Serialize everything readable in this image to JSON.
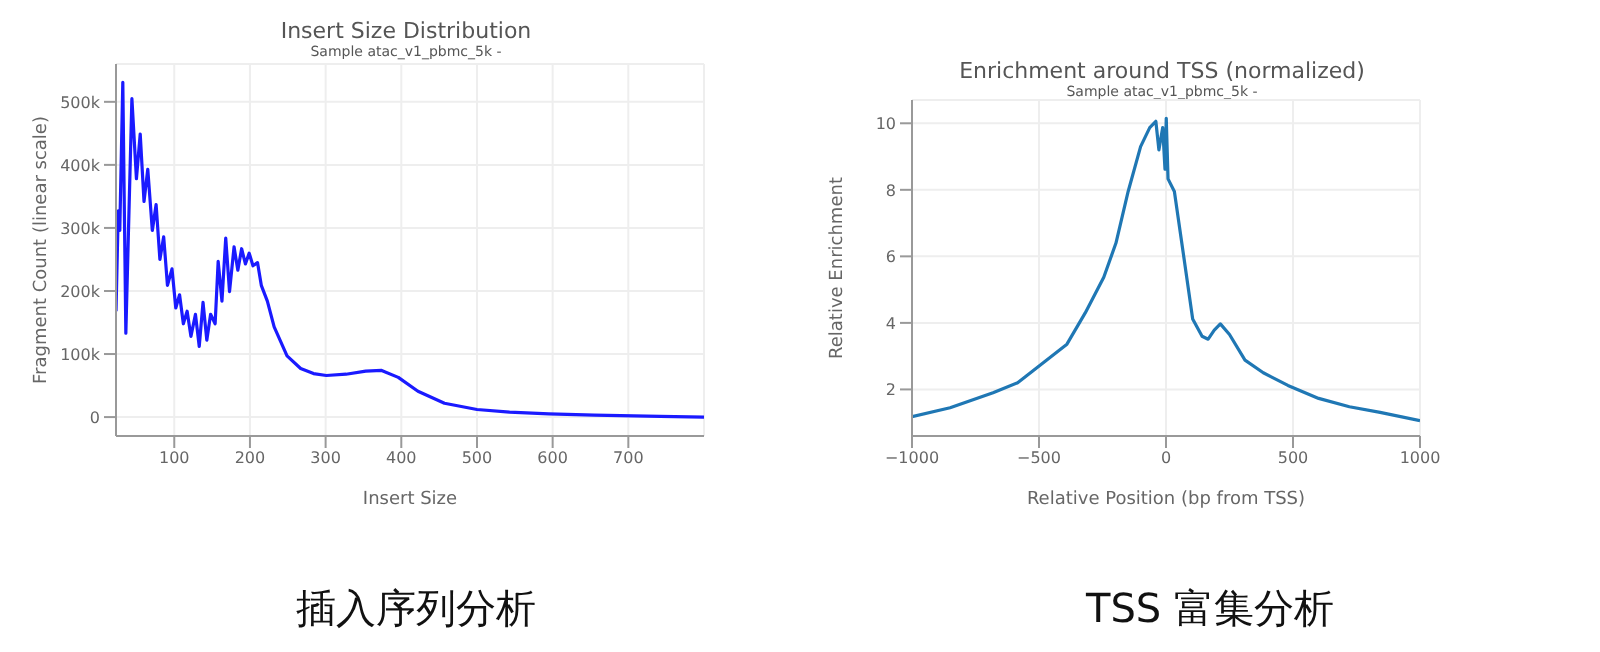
{
  "chart_data": [
    {
      "type": "line",
      "title": "Insert Size Distribution",
      "subtitle": "Sample atac_v1_pbmc_5k -",
      "xlabel": "Insert Size",
      "ylabel": "Fragment Count (linear scale)",
      "annotations": [
        "插入序列分析"
      ],
      "x": [
        23,
        26,
        28,
        32,
        36,
        44,
        50,
        55,
        60,
        65,
        71,
        76,
        81,
        86,
        91,
        97,
        102,
        107,
        112,
        117,
        122,
        128,
        133,
        138,
        143,
        148,
        154,
        158,
        163,
        168,
        173,
        179,
        184,
        189,
        194,
        199,
        204,
        210,
        215,
        223,
        232,
        249,
        267,
        284,
        301,
        327,
        353,
        374,
        396,
        422,
        457,
        500,
        543,
        595,
        655,
        742,
        800
      ],
      "series": [
        {
          "color": "#1a1aff",
          "values": [
            168000,
            327000,
            296000,
            531000,
            133000,
            505000,
            378000,
            449000,
            342000,
            393000,
            296000,
            337000,
            250000,
            286000,
            209000,
            235000,
            173000,
            194000,
            148000,
            168000,
            128000,
            163000,
            112000,
            182000,
            122000,
            163000,
            148000,
            247000,
            184000,
            284000,
            199000,
            270000,
            233000,
            267000,
            243000,
            260000,
            240000,
            245000,
            209000,
            184000,
            143000,
            97000,
            77000,
            69000,
            66000,
            68000,
            73000,
            74000,
            63000,
            41000,
            22000,
            12000,
            8000,
            5000,
            3000,
            1000,
            0
          ]
        }
      ],
      "xlim": [
        23,
        800
      ],
      "xticks": [
        100,
        200,
        300,
        400,
        500,
        600,
        700
      ],
      "ylim": [
        -30000,
        560000
      ],
      "yticks": [
        0,
        {
          "value": 100000,
          "label": "100k"
        },
        {
          "value": 200000,
          "label": "200k"
        },
        {
          "value": 300000,
          "label": "300k"
        },
        {
          "value": 400000,
          "label": "400k"
        },
        {
          "value": 500000,
          "label": "500k"
        }
      ],
      "grid": true,
      "legend": false,
      "marker": "none",
      "line_style": "solid"
    },
    {
      "type": "line",
      "title": "Enrichment around TSS (normalized)",
      "subtitle": "Sample atac_v1_pbmc_5k -",
      "xlabel": "Relative Position (bp from TSS)",
      "ylabel": "Relative Enrichment",
      "annotations": [
        "TSS 富集分析"
      ],
      "x": [
        -1000,
        -850,
        -681,
        -584,
        -487,
        -390,
        -318,
        -245,
        -197,
        -149,
        -100,
        -64,
        -40,
        -28,
        -13,
        -4,
        1,
        8,
        33,
        69,
        105,
        142,
        166,
        190,
        214,
        250,
        311,
        383,
        480,
        601,
        722,
        843,
        1000
      ],
      "series": [
        {
          "color": "#1f77b4",
          "values": [
            1.18,
            1.45,
            1.9,
            2.2,
            2.78,
            3.36,
            4.3,
            5.37,
            6.4,
            7.95,
            9.3,
            9.87,
            10.06,
            9.2,
            9.87,
            8.62,
            10.15,
            8.33,
            7.95,
            6.04,
            4.12,
            3.6,
            3.51,
            3.78,
            3.97,
            3.65,
            2.88,
            2.5,
            2.12,
            1.73,
            1.48,
            1.31,
            1.06
          ]
        }
      ],
      "xlim": [
        -1000,
        1000
      ],
      "xticks": [
        {
          "value": -1000,
          "label": "−1000"
        },
        {
          "value": -500,
          "label": "−500"
        },
        0,
        500,
        1000
      ],
      "ylim": [
        0.6,
        10.7
      ],
      "yticks": [
        2,
        4,
        6,
        8,
        10
      ],
      "grid": true,
      "legend": false,
      "marker": "none",
      "line_style": "solid"
    }
  ]
}
